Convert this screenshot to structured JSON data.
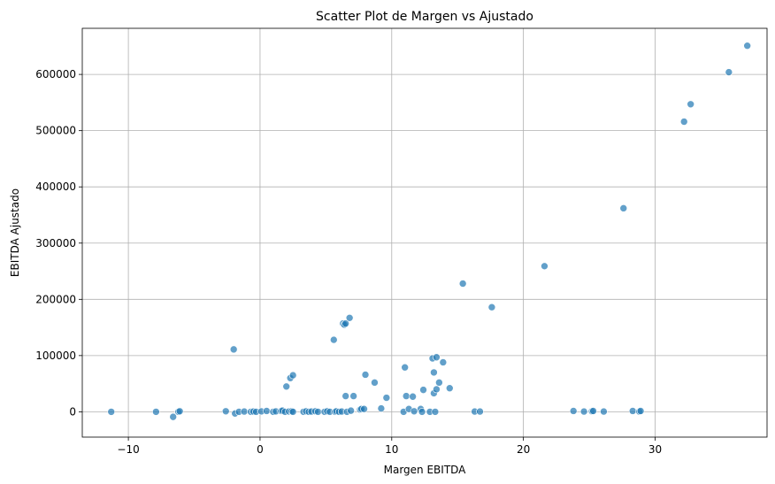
{
  "chart_data": {
    "type": "scatter",
    "title": "Scatter Plot de Margen vs Ajustado",
    "xlabel": "Margen EBITDA",
    "ylabel": "EBITDA Ajustado",
    "xlim": [
      -13.5,
      38.5
    ],
    "ylim": [
      -45000,
      682000
    ],
    "xticks": [
      -10,
      0,
      10,
      20,
      30
    ],
    "xtick_labels": [
      "−10",
      "0",
      "10",
      "20",
      "30"
    ],
    "yticks": [
      0,
      100000,
      200000,
      300000,
      400000,
      500000,
      600000
    ],
    "ytick_labels": [
      "0",
      "100000",
      "200000",
      "300000",
      "400000",
      "500000",
      "600000"
    ],
    "grid": true,
    "point_color": "#1f77b4",
    "points": [
      [
        -11.3,
        0
      ],
      [
        -7.9,
        0
      ],
      [
        -6.6,
        -9000
      ],
      [
        -6.2,
        0
      ],
      [
        -6.1,
        1000
      ],
      [
        -2.6,
        1000
      ],
      [
        -2.0,
        111000
      ],
      [
        -1.9,
        -3000
      ],
      [
        -1.6,
        0
      ],
      [
        -1.2,
        500
      ],
      [
        -0.7,
        0
      ],
      [
        -0.5,
        500
      ],
      [
        -0.3,
        0
      ],
      [
        0.1,
        800
      ],
      [
        0.5,
        1500
      ],
      [
        1.0,
        0
      ],
      [
        1.2,
        800
      ],
      [
        1.6,
        1500
      ],
      [
        1.7,
        2000
      ],
      [
        1.9,
        0
      ],
      [
        2.0,
        45000
      ],
      [
        2.2,
        600
      ],
      [
        2.3,
        60000
      ],
      [
        2.4,
        1000
      ],
      [
        2.5,
        65000
      ],
      [
        2.5,
        0
      ],
      [
        3.3,
        0
      ],
      [
        3.5,
        1000
      ],
      [
        3.7,
        0
      ],
      [
        3.9,
        500
      ],
      [
        4.2,
        1000
      ],
      [
        4.4,
        0
      ],
      [
        4.9,
        0
      ],
      [
        5.1,
        1000
      ],
      [
        5.3,
        0
      ],
      [
        5.6,
        128000
      ],
      [
        5.7,
        0
      ],
      [
        5.8,
        1000
      ],
      [
        6.0,
        0
      ],
      [
        6.2,
        500
      ],
      [
        6.3,
        157000
      ],
      [
        6.4,
        155000
      ],
      [
        6.5,
        157000
      ],
      [
        6.5,
        28000
      ],
      [
        6.6,
        0
      ],
      [
        6.8,
        167000
      ],
      [
        6.9,
        2000
      ],
      [
        7.1,
        28000
      ],
      [
        7.6,
        4000
      ],
      [
        7.7,
        5000
      ],
      [
        7.9,
        5000
      ],
      [
        8.0,
        66000
      ],
      [
        8.7,
        52000
      ],
      [
        9.2,
        6000
      ],
      [
        9.6,
        25000
      ],
      [
        10.9,
        0
      ],
      [
        11.0,
        79000
      ],
      [
        11.1,
        28000
      ],
      [
        11.3,
        5000
      ],
      [
        11.6,
        27000
      ],
      [
        11.7,
        1000
      ],
      [
        12.2,
        5000
      ],
      [
        12.3,
        0
      ],
      [
        12.4,
        39000
      ],
      [
        12.9,
        0
      ],
      [
        13.1,
        95000
      ],
      [
        13.2,
        33000
      ],
      [
        13.2,
        70000
      ],
      [
        13.3,
        0
      ],
      [
        13.4,
        97000
      ],
      [
        13.4,
        40000
      ],
      [
        13.6,
        52000
      ],
      [
        13.9,
        88000
      ],
      [
        14.4,
        42000
      ],
      [
        15.4,
        228000
      ],
      [
        16.3,
        500
      ],
      [
        16.7,
        500
      ],
      [
        17.6,
        186000
      ],
      [
        21.6,
        259000
      ],
      [
        23.8,
        1500
      ],
      [
        24.6,
        500
      ],
      [
        25.2,
        1000
      ],
      [
        25.3,
        1500
      ],
      [
        26.1,
        500
      ],
      [
        27.6,
        362000
      ],
      [
        28.3,
        1500
      ],
      [
        28.8,
        500
      ],
      [
        28.9,
        1500
      ],
      [
        32.2,
        516000
      ],
      [
        32.7,
        547000
      ],
      [
        35.6,
        604000
      ],
      [
        37.0,
        651000
      ]
    ]
  }
}
